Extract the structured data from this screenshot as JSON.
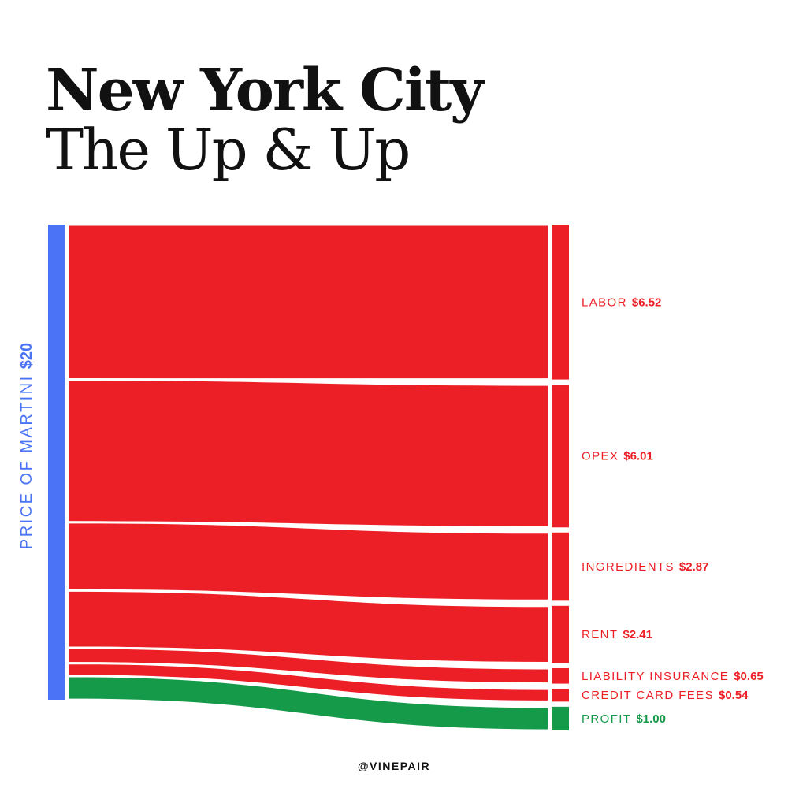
{
  "title": "New York City",
  "subtitle": "The Up & Up",
  "credit": "@VINEPAIR",
  "colors": {
    "source": "#4a73f5",
    "cost": "#ed1f26",
    "profit": "#149a48",
    "text": "#111111"
  },
  "chart_data": {
    "type": "sankey",
    "source": {
      "name": "PRICE OF MARTINI",
      "value_label": "$20",
      "value": 20
    },
    "units": "USD",
    "flows": [
      {
        "name": "LABOR",
        "value": 6.52,
        "value_label": "$6.52",
        "kind": "cost"
      },
      {
        "name": "OPEX",
        "value": 6.01,
        "value_label": "$6.01",
        "kind": "cost"
      },
      {
        "name": "INGREDIENTS",
        "value": 2.87,
        "value_label": "$2.87",
        "kind": "cost"
      },
      {
        "name": "RENT",
        "value": 2.41,
        "value_label": "$2.41",
        "kind": "cost"
      },
      {
        "name": "LIABILITY INSURANCE",
        "value": 0.65,
        "value_label": "$0.65",
        "kind": "cost"
      },
      {
        "name": "CREDIT CARD FEES",
        "value": 0.54,
        "value_label": "$0.54",
        "kind": "cost"
      },
      {
        "name": "PROFIT",
        "value": 1.0,
        "value_label": "$1.00",
        "kind": "profit"
      }
    ]
  }
}
